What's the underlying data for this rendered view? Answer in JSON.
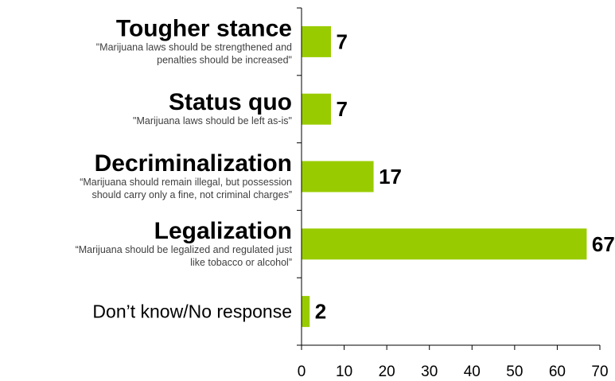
{
  "chart_data": {
    "type": "bar",
    "orientation": "horizontal",
    "categories": [
      {
        "title": "Tougher stance",
        "title_bold": true,
        "subtitle_lines": [
          "\"Marijuana laws should be strengthened and",
          "penalties should be increased\""
        ]
      },
      {
        "title": "Status quo",
        "title_bold": true,
        "subtitle_lines": [
          "\"Marijuana laws should be left as-is\""
        ]
      },
      {
        "title": "Decriminalization",
        "title_bold": true,
        "subtitle_lines": [
          "“Marijuana should remain illegal, but possession",
          "should carry only a fine, not criminal charges”"
        ]
      },
      {
        "title": "Legalization",
        "title_bold": true,
        "subtitle_lines": [
          "“Marijuana should be legalized and regulated just",
          "like tobacco or alcohol”"
        ]
      },
      {
        "title": "Don’t know/No response",
        "title_bold": false,
        "subtitle_lines": []
      }
    ],
    "values": [
      7,
      7,
      17,
      67,
      2
    ],
    "data_labels": [
      "7",
      "7",
      "17",
      "67",
      "2"
    ],
    "xlim": [
      0,
      70
    ],
    "x_ticks": [
      0,
      10,
      20,
      30,
      40,
      50,
      60,
      70
    ],
    "bar_color": "#99cc00",
    "bar_edge_color": "#ffffff",
    "grid": false,
    "legend": "none"
  }
}
